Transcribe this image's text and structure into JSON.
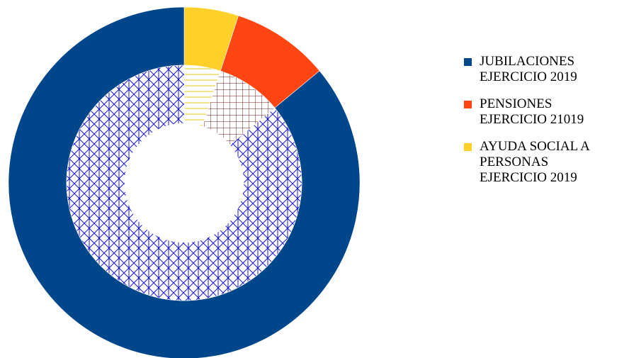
{
  "chart_data": {
    "type": "doughnut",
    "categories": [
      "JUBILACIONES\nEJERCICIO 2019",
      "PENSIONES\nEJERCICIO 21019",
      "AYUDA SOCIAL A\nPERSONAS\nEJERCICIO 2019"
    ],
    "series": [
      {
        "ring": "outer",
        "values": [
          86,
          9,
          5
        ]
      },
      {
        "ring": "inner",
        "values": [
          86,
          9,
          5
        ]
      }
    ],
    "colors": [
      "#00468B",
      "#FF4512",
      "#FFD02A"
    ],
    "inner_hatch_colors": [
      "#1515D8",
      "#7A1E1E",
      "#E8D23C"
    ],
    "legend_position": "right"
  }
}
